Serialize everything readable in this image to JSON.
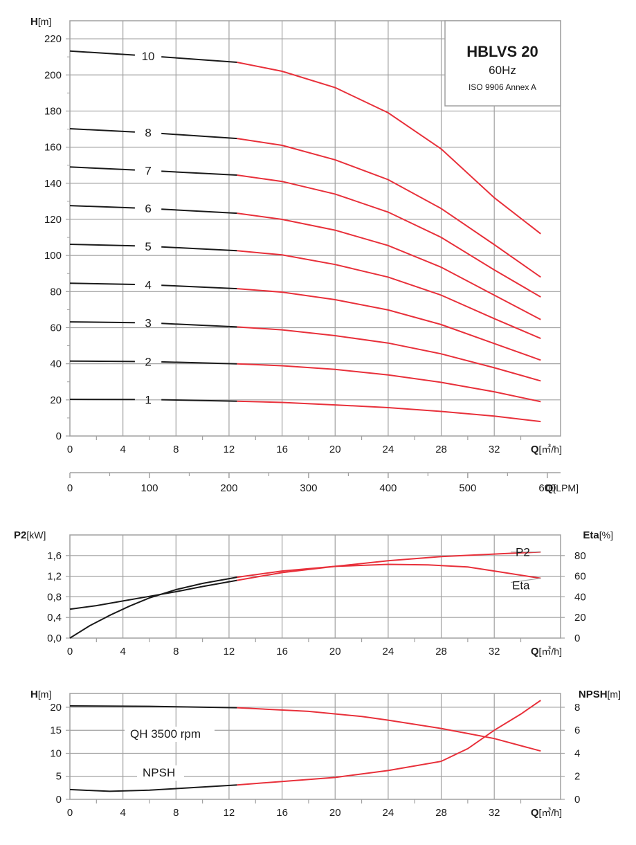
{
  "chart_data": [
    {
      "type": "line",
      "title": "HBLVS 20",
      "subtitle": "60Hz",
      "note": "ISO 9906 Annex A",
      "ylabel": "H",
      "ylabel_unit": "[m]",
      "xlabel": "Q",
      "xlabel_unit": "[㎥/h]",
      "xlabel2": "Q",
      "xlabel2_unit": "[LPM]",
      "xlim": [
        0,
        37
      ],
      "ylim": [
        0,
        230
      ],
      "x_ticks": [
        "0",
        "4",
        "8",
        "12",
        "16",
        "20",
        "24",
        "28",
        "32"
      ],
      "y_ticks": [
        "0",
        "20",
        "40",
        "60",
        "80",
        "100",
        "120",
        "140",
        "160",
        "180",
        "200",
        "220"
      ],
      "x2_ticks": [
        "0",
        "100",
        "200",
        "300",
        "400",
        "500",
        "600"
      ],
      "grid": true,
      "colors": {
        "low_flow": "#1a1a1a",
        "operating": "#e8303a",
        "grid": "#a0a0a0"
      },
      "series": [
        {
          "name": "1",
          "x": [
            0,
            6,
            12.6,
            16,
            20,
            24,
            28,
            32,
            35.5
          ],
          "y": [
            20.3,
            20.2,
            19.3,
            18.6,
            17.2,
            15.7,
            13.6,
            11,
            8
          ]
        },
        {
          "name": "2",
          "x": [
            0,
            6,
            12.6,
            16,
            20,
            24,
            28,
            32,
            35.5
          ],
          "y": [
            41.5,
            41.2,
            40,
            38.9,
            36.9,
            33.8,
            29.7,
            24.5,
            19
          ]
        },
        {
          "name": "3",
          "x": [
            0,
            6,
            12.6,
            16,
            20,
            24,
            28,
            32,
            35.5
          ],
          "y": [
            63.2,
            62.7,
            60.4,
            58.8,
            55.6,
            51.5,
            45.5,
            37.8,
            30.5
          ]
        },
        {
          "name": "4",
          "x": [
            0,
            6,
            12.6,
            16,
            20,
            24,
            28,
            32,
            35.5
          ],
          "y": [
            84.6,
            83.8,
            81.6,
            79.7,
            75.5,
            69.8,
            61.7,
            51.2,
            42
          ]
        },
        {
          "name": "5",
          "x": [
            0,
            6,
            12.6,
            16,
            20,
            24,
            28,
            32,
            35.5
          ],
          "y": [
            106.2,
            105.1,
            102.6,
            100.3,
            95,
            88,
            78,
            65,
            54
          ]
        },
        {
          "name": "6",
          "x": [
            0,
            6,
            12.6,
            16,
            20,
            24,
            28,
            32,
            35.5
          ],
          "y": [
            127.6,
            126,
            123.4,
            120,
            114,
            105.5,
            93.5,
            78,
            64.5
          ]
        },
        {
          "name": "7",
          "x": [
            0,
            6,
            12.6,
            16,
            20,
            24,
            28,
            32,
            35.5
          ],
          "y": [
            149,
            147,
            144.5,
            141,
            134,
            124,
            110,
            92,
            77
          ]
        },
        {
          "name": "8",
          "x": [
            0,
            6,
            12.6,
            16,
            20,
            24,
            28,
            32,
            35.5
          ],
          "y": [
            170.2,
            168,
            164.8,
            161,
            153,
            142,
            126,
            106,
            88
          ]
        },
        {
          "name": "10",
          "x": [
            0,
            6,
            12.6,
            16,
            20,
            24,
            28,
            32,
            35.5
          ],
          "y": [
            213.2,
            210.5,
            207,
            202,
            193,
            179,
            159,
            132,
            112
          ]
        }
      ]
    },
    {
      "type": "line",
      "ylabel": "P2",
      "ylabel_unit": "[kW]",
      "y2label": "Eta",
      "y2label_unit": "[%]",
      "xlabel": "Q",
      "xlabel_unit": "[㎥/h]",
      "xlim": [
        0,
        37
      ],
      "ylim": [
        0,
        2.0
      ],
      "y2lim": [
        0,
        100
      ],
      "x_ticks": [
        "0",
        "4",
        "8",
        "12",
        "16",
        "20",
        "24",
        "28",
        "32"
      ],
      "y_ticks": [
        "0,0",
        "0,4",
        "0,8",
        "1,2",
        "1,6"
      ],
      "y2_ticks": [
        "0",
        "20",
        "40",
        "60",
        "80"
      ],
      "grid": true,
      "series": [
        {
          "name": "P2",
          "axis": "left",
          "x": [
            0,
            2,
            4,
            6,
            8,
            10,
            12.6,
            16,
            20,
            24,
            28,
            32,
            35.5
          ],
          "y": [
            0.56,
            0.63,
            0.72,
            0.81,
            0.9,
            1.0,
            1.12,
            1.27,
            1.39,
            1.5,
            1.58,
            1.63,
            1.67
          ]
        },
        {
          "name": "Eta",
          "axis": "right",
          "x": [
            0,
            1.5,
            3,
            4.5,
            6,
            8,
            10,
            12.6,
            16,
            20,
            24,
            27,
            30,
            32,
            35.5
          ],
          "y": [
            0,
            12,
            22,
            31,
            39,
            47,
            53,
            59,
            65,
            69.5,
            71.5,
            71,
            69,
            65,
            58
          ]
        }
      ]
    },
    {
      "type": "line",
      "ylabel": "H",
      "ylabel_unit": "[m]",
      "y2label": "NPSH",
      "y2label_unit": "[m]",
      "xlabel": "Q",
      "xlabel_unit": "[㎥/h]",
      "xlim": [
        0,
        37
      ],
      "ylim": [
        0,
        23
      ],
      "y2lim": [
        0,
        9.2
      ],
      "x_ticks": [
        "0",
        "4",
        "8",
        "12",
        "16",
        "20",
        "24",
        "28",
        "32"
      ],
      "y_ticks": [
        "0",
        "5",
        "10",
        "15",
        "20"
      ],
      "y2_ticks": [
        "0",
        "2",
        "4",
        "6",
        "8"
      ],
      "grid": true,
      "series": [
        {
          "name": "QH 3500 rpm",
          "axis": "left",
          "x": [
            0,
            6,
            12.6,
            18,
            22,
            24,
            28,
            30,
            32,
            35.5
          ],
          "y": [
            20.3,
            20.2,
            19.9,
            19.1,
            18,
            17.2,
            15.4,
            14.3,
            13.2,
            10.5
          ]
        },
        {
          "name": "NPSH",
          "axis": "right",
          "x": [
            0,
            3,
            6,
            9,
            12.6,
            16,
            20,
            24,
            28,
            30,
            32,
            34,
            35.5
          ],
          "y": [
            0.85,
            0.7,
            0.8,
            1.0,
            1.25,
            1.55,
            1.9,
            2.5,
            3.3,
            4.4,
            6.0,
            7.4,
            8.6
          ]
        }
      ]
    }
  ]
}
